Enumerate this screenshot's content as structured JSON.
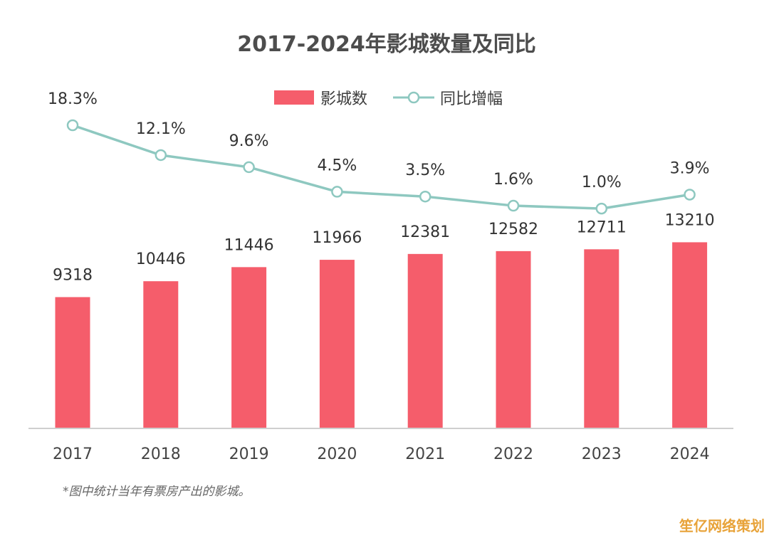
{
  "chart_data": {
    "type": "bar",
    "title": "2017-2024年影城数量及同比",
    "categories": [
      "2017",
      "2018",
      "2019",
      "2020",
      "2021",
      "2022",
      "2023",
      "2024"
    ],
    "series": [
      {
        "name": "影城数",
        "kind": "bar",
        "color": "#f55d6b",
        "values": [
          9318,
          10446,
          11446,
          11966,
          12381,
          12582,
          12711,
          13210
        ]
      },
      {
        "name": "同比增幅",
        "kind": "line",
        "color": "#8ec8c0",
        "marker": "hollow-circle",
        "values": [
          18.3,
          12.1,
          9.6,
          4.5,
          3.5,
          1.6,
          1.0,
          3.9
        ],
        "labels": [
          "18.3%",
          "12.1%",
          "9.6%",
          "4.5%",
          "3.5%",
          "1.6%",
          "1.0%",
          "3.9%"
        ]
      }
    ],
    "grid": false,
    "legend_position": "top-center",
    "xlabel": "",
    "ylabel": "",
    "footnote": "*图中统计当年有票房产出的影城。"
  },
  "watermark": "笙亿网络策划"
}
